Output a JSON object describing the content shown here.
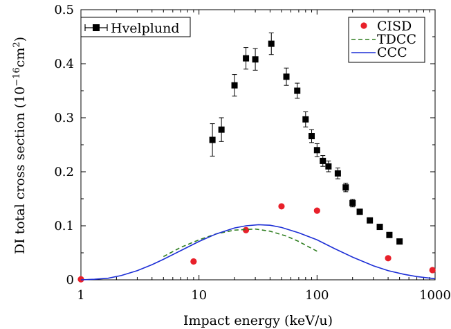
{
  "chart_data": {
    "type": "scatter",
    "xlabel": "Impact energy (keV/u)",
    "ylabel_main": "DI total cross section (10",
    "ylabel_exp1": "−16",
    "ylabel_mid": "cm",
    "ylabel_exp2": "2",
    "ylabel_end": ")",
    "xscale": "log",
    "xlim": [
      1,
      1000
    ],
    "ylim": [
      0,
      0.5
    ],
    "xticks": [
      {
        "value": 1,
        "label": "1"
      },
      {
        "value": 10,
        "label": "10"
      },
      {
        "value": 100,
        "label": "100"
      },
      {
        "value": 1000,
        "label": "1000"
      }
    ],
    "yticks": [
      {
        "value": 0,
        "label": "0"
      },
      {
        "value": 0.1,
        "label": "0.1"
      },
      {
        "value": 0.2,
        "label": "0.2"
      },
      {
        "value": 0.3,
        "label": "0.3"
      },
      {
        "value": 0.4,
        "label": "0.4"
      },
      {
        "value": 0.5,
        "label": "0.5"
      }
    ],
    "grid": false,
    "legend_left": {
      "placement": "top-left",
      "entries": [
        "Hvelplund"
      ]
    },
    "legend_right": {
      "placement": "top-right",
      "entries": [
        "CISD",
        "TDCC",
        "CCC"
      ]
    },
    "series": [
      {
        "name": "Hvelplund",
        "kind": "markers-errorbars",
        "marker": "square",
        "color": "#000000",
        "points": [
          {
            "x": 13,
            "y": 0.259,
            "err": 0.03
          },
          {
            "x": 15.5,
            "y": 0.278,
            "err": 0.022
          },
          {
            "x": 20,
            "y": 0.36,
            "err": 0.02
          },
          {
            "x": 25,
            "y": 0.41,
            "err": 0.02
          },
          {
            "x": 30,
            "y": 0.408,
            "err": 0.02
          },
          {
            "x": 41,
            "y": 0.437,
            "err": 0.02
          },
          {
            "x": 55,
            "y": 0.376,
            "err": 0.016
          },
          {
            "x": 68,
            "y": 0.35,
            "err": 0.014
          },
          {
            "x": 80,
            "y": 0.297,
            "err": 0.014
          },
          {
            "x": 90,
            "y": 0.266,
            "err": 0.012
          },
          {
            "x": 100,
            "y": 0.24,
            "err": 0.012
          },
          {
            "x": 112,
            "y": 0.22,
            "err": 0.01
          },
          {
            "x": 125,
            "y": 0.21,
            "err": 0.01
          },
          {
            "x": 150,
            "y": 0.197,
            "err": 0.01
          },
          {
            "x": 175,
            "y": 0.171,
            "err": 0.008
          },
          {
            "x": 200,
            "y": 0.142,
            "err": 0.007
          },
          {
            "x": 230,
            "y": 0.126,
            "err": 0
          },
          {
            "x": 280,
            "y": 0.11,
            "err": 0
          },
          {
            "x": 340,
            "y": 0.098,
            "err": 0
          },
          {
            "x": 410,
            "y": 0.083,
            "err": 0
          },
          {
            "x": 500,
            "y": 0.071,
            "err": 0
          }
        ]
      },
      {
        "name": "CISD",
        "kind": "markers",
        "marker": "circle",
        "color": "#e8202a",
        "points": [
          {
            "x": 1,
            "y": 0.001
          },
          {
            "x": 9,
            "y": 0.034
          },
          {
            "x": 25,
            "y": 0.092
          },
          {
            "x": 50,
            "y": 0.136
          },
          {
            "x": 100,
            "y": 0.128
          },
          {
            "x": 400,
            "y": 0.04
          },
          {
            "x": 950,
            "y": 0.018
          }
        ]
      },
      {
        "name": "TDCC",
        "kind": "line",
        "style": "dashed",
        "color": "#2e7d1f",
        "points": [
          {
            "x": 5,
            "y": 0.043
          },
          {
            "x": 7,
            "y": 0.06
          },
          {
            "x": 10,
            "y": 0.074
          },
          {
            "x": 14,
            "y": 0.085
          },
          {
            "x": 20,
            "y": 0.092
          },
          {
            "x": 30,
            "y": 0.094
          },
          {
            "x": 40,
            "y": 0.09
          },
          {
            "x": 55,
            "y": 0.081
          },
          {
            "x": 70,
            "y": 0.071
          },
          {
            "x": 85,
            "y": 0.061
          },
          {
            "x": 100,
            "y": 0.053
          }
        ]
      },
      {
        "name": "CCC",
        "kind": "line",
        "style": "solid",
        "color": "#1c2ed6",
        "points": [
          {
            "x": 1,
            "y": 0.0
          },
          {
            "x": 1.3,
            "y": 0.001
          },
          {
            "x": 1.7,
            "y": 0.003
          },
          {
            "x": 2.2,
            "y": 0.008
          },
          {
            "x": 3,
            "y": 0.017
          },
          {
            "x": 4,
            "y": 0.028
          },
          {
            "x": 5,
            "y": 0.038
          },
          {
            "x": 7,
            "y": 0.054
          },
          {
            "x": 10,
            "y": 0.071
          },
          {
            "x": 14,
            "y": 0.085
          },
          {
            "x": 20,
            "y": 0.096
          },
          {
            "x": 25,
            "y": 0.1
          },
          {
            "x": 32,
            "y": 0.102
          },
          {
            "x": 40,
            "y": 0.101
          },
          {
            "x": 50,
            "y": 0.097
          },
          {
            "x": 70,
            "y": 0.087
          },
          {
            "x": 100,
            "y": 0.074
          },
          {
            "x": 140,
            "y": 0.058
          },
          {
            "x": 200,
            "y": 0.042
          },
          {
            "x": 300,
            "y": 0.026
          },
          {
            "x": 400,
            "y": 0.017
          },
          {
            "x": 550,
            "y": 0.01
          },
          {
            "x": 700,
            "y": 0.006
          },
          {
            "x": 1000,
            "y": 0.002
          }
        ]
      }
    ]
  }
}
